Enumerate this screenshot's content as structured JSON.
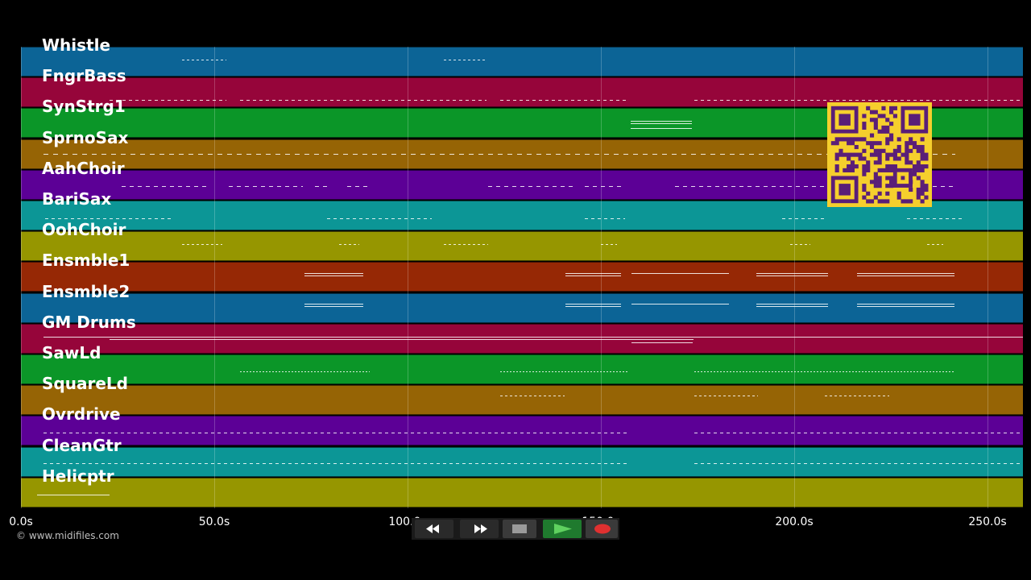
{
  "tracks": [
    {
      "name": "Whistle",
      "color": "#0c6496"
    },
    {
      "name": "FngrBass",
      "color": "#96053a"
    },
    {
      "name": "SynStrg1",
      "color": "#0b9628"
    },
    {
      "name": "SprnoSax",
      "color": "#966405"
    },
    {
      "name": "AahChoir",
      "color": "#5c0096"
    },
    {
      "name": "BariSax",
      "color": "#0c9696"
    },
    {
      "name": "OohChoir",
      "color": "#969600"
    },
    {
      "name": "Ensmble1",
      "color": "#962805"
    },
    {
      "name": "Ensmble2",
      "color": "#0c6496"
    },
    {
      "name": "GM Drums",
      "color": "#96053a"
    },
    {
      "name": "SawLd",
      "color": "#0b9628"
    },
    {
      "name": "SquareLd",
      "color": "#966405"
    },
    {
      "name": "Ovrdrive",
      "color": "#5c0096"
    },
    {
      "name": "CleanGtr",
      "color": "#0c9696"
    },
    {
      "name": "Helicptr",
      "color": "#969600"
    }
  ],
  "timeline": {
    "ticks": [
      "0.0s",
      "50.0s",
      "100.0s",
      "150.0s",
      "200.0s",
      "250.0s"
    ]
  },
  "copyright": "© www.midifiles.com",
  "transport": {
    "rewind_icon": "rewind-icon",
    "fastforward_icon": "fast-forward-icon",
    "stop_icon": "stop-icon",
    "play_icon": "play-icon",
    "record_icon": "record-icon",
    "colors": {
      "bg": "#1a1a1a",
      "play_bg": "#1f7a2e",
      "play_glyph": "#5fd15f",
      "record_glyph": "#e03030",
      "button_bg": "#3a3a3a"
    }
  },
  "qr_code": {
    "color": "#5a1e78",
    "background": "#f5cf2d"
  }
}
